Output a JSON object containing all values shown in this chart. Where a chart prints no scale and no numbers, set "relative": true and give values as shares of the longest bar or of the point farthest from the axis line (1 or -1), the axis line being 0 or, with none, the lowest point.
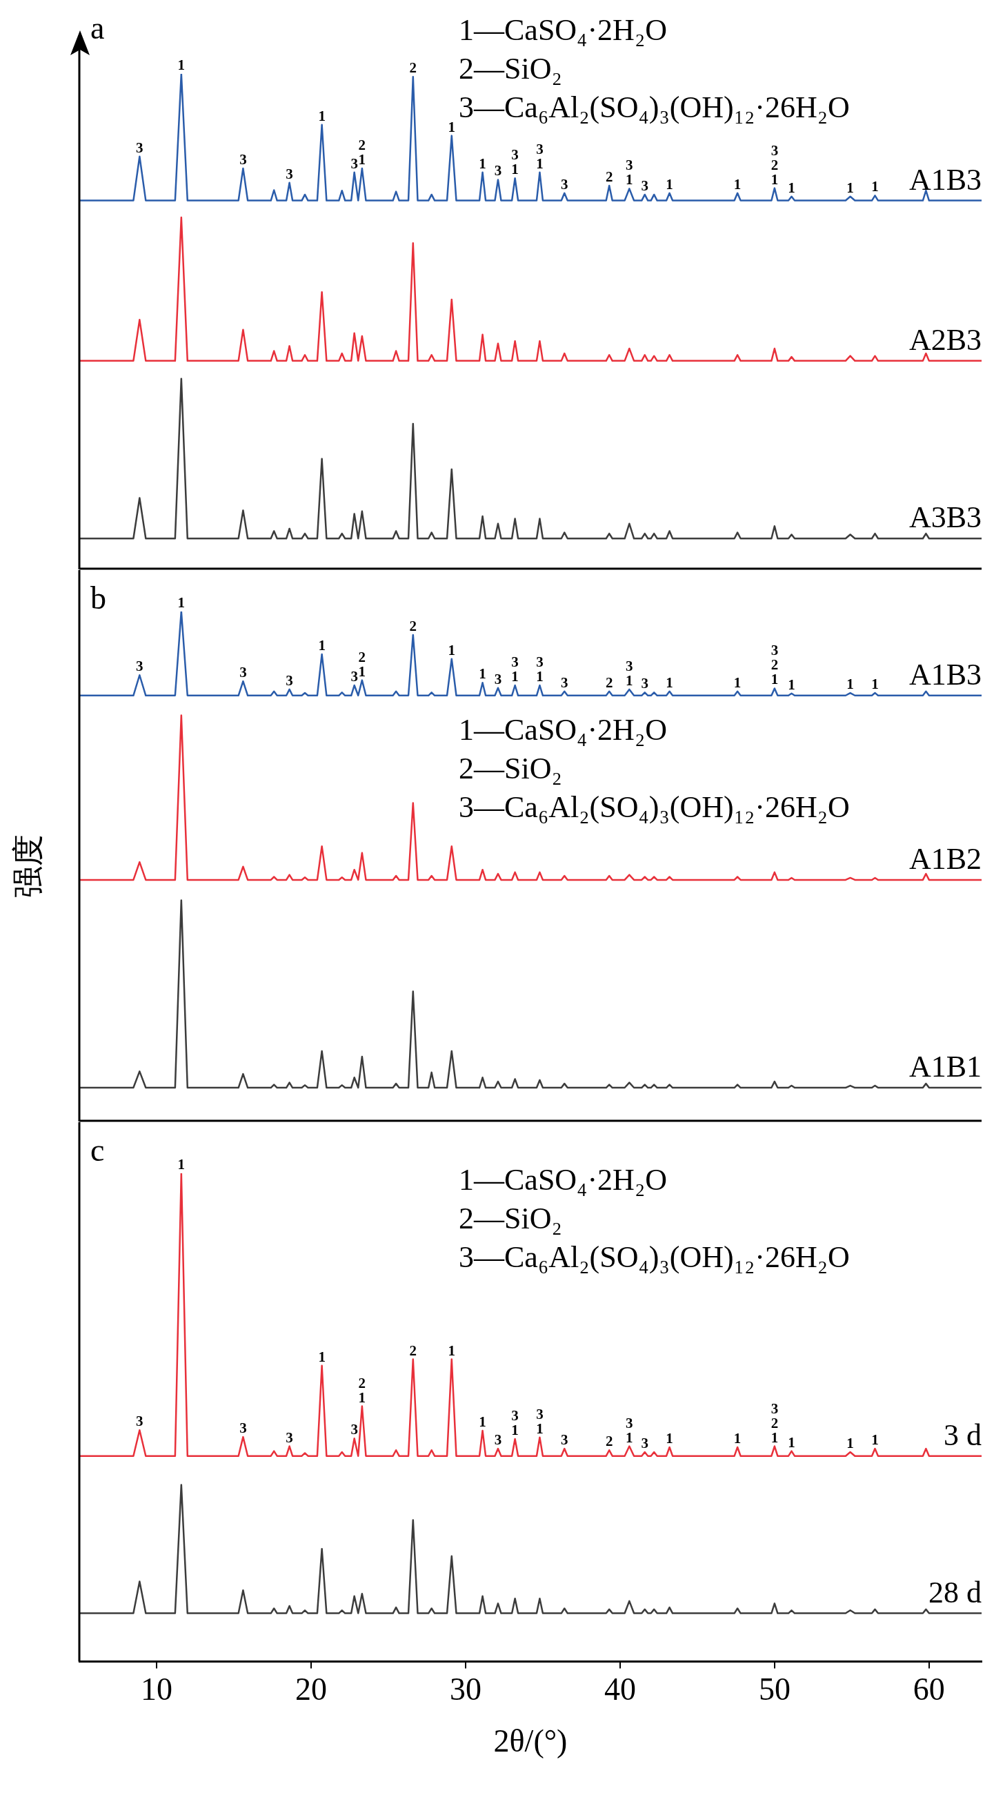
{
  "chart_data": [
    {
      "type": "line",
      "title": "a",
      "relative": true,
      "tick_labels": false,
      "xlim": [
        5,
        63.4
      ],
      "x": [
        5,
        8.5,
        8.9,
        9.3,
        11.2,
        11.6,
        12.0,
        15.3,
        15.6,
        15.9,
        17.4,
        17.6,
        17.8,
        18.4,
        18.6,
        18.8,
        19.4,
        19.6,
        19.8,
        20.4,
        20.7,
        21.0,
        21.8,
        22.0,
        22.2,
        22.6,
        22.8,
        23.05,
        23.3,
        23.55,
        25.3,
        25.5,
        25.7,
        26.3,
        26.6,
        26.9,
        27.6,
        27.8,
        28.0,
        28.8,
        29.1,
        29.4,
        30.9,
        31.1,
        31.3,
        31.9,
        32.1,
        32.3,
        33.0,
        33.2,
        33.4,
        34.6,
        34.8,
        35.0,
        36.2,
        36.4,
        36.6,
        39.1,
        39.3,
        39.5,
        40.3,
        40.6,
        40.9,
        41.4,
        41.6,
        41.8,
        42.0,
        42.2,
        42.4,
        43.0,
        43.2,
        43.4,
        47.4,
        47.6,
        47.8,
        49.8,
        50.0,
        50.2,
        50.9,
        51.1,
        51.3,
        54.6,
        54.9,
        55.2,
        56.3,
        56.5,
        56.7,
        59.6,
        59.8,
        60.0,
        63.4
      ],
      "series": [
        {
          "name": "A1B3",
          "color": "#2a5caa",
          "values": [
            0.744,
            0.744,
            0.833,
            0.744,
            0.744,
            1,
            0.744,
            0.744,
            0.809,
            0.744,
            0.744,
            0.765,
            0.744,
            0.744,
            0.78,
            0.744,
            0.744,
            0.756,
            0.744,
            0.744,
            0.897,
            0.744,
            0.744,
            0.764,
            0.744,
            0.744,
            0.801,
            0.744,
            0.809,
            0.744,
            0.744,
            0.762,
            0.744,
            0.744,
            0.994,
            0.744,
            0.744,
            0.756,
            0.744,
            0.744,
            0.875,
            0.744,
            0.744,
            0.801,
            0.744,
            0.744,
            0.786,
            0.744,
            0.744,
            0.789,
            0.744,
            0.744,
            0.801,
            0.744,
            0.744,
            0.759,
            0.744,
            0.744,
            0.774,
            0.744,
            0.744,
            0.768,
            0.744,
            0.744,
            0.756,
            0.744,
            0.744,
            0.756,
            0.744,
            0.744,
            0.759,
            0.744,
            0.744,
            0.759,
            0.744,
            0.744,
            0.769,
            0.744,
            0.744,
            0.752,
            0.744,
            0.744,
            0.752,
            0.744,
            0.744,
            0.754,
            0.744,
            0.744,
            0.764,
            0.744,
            0.744
          ]
        },
        {
          "name": "A2B3",
          "color": "#e8303a",
          "values": [
            0.42,
            0.42,
            0.503,
            0.42,
            0.42,
            0.71,
            0.42,
            0.42,
            0.483,
            0.42,
            0.42,
            0.44,
            0.42,
            0.42,
            0.45,
            0.42,
            0.42,
            0.432,
            0.42,
            0.42,
            0.559,
            0.42,
            0.42,
            0.435,
            0.42,
            0.42,
            0.476,
            0.42,
            0.47,
            0.42,
            0.42,
            0.44,
            0.42,
            0.42,
            0.658,
            0.42,
            0.42,
            0.432,
            0.42,
            0.42,
            0.544,
            0.42,
            0.42,
            0.473,
            0.42,
            0.42,
            0.455,
            0.42,
            0.42,
            0.46,
            0.42,
            0.42,
            0.46,
            0.42,
            0.42,
            0.435,
            0.42,
            0.42,
            0.432,
            0.42,
            0.42,
            0.445,
            0.42,
            0.42,
            0.432,
            0.42,
            0.42,
            0.43,
            0.42,
            0.42,
            0.432,
            0.42,
            0.42,
            0.432,
            0.42,
            0.42,
            0.445,
            0.42,
            0.42,
            0.428,
            0.42,
            0.42,
            0.43,
            0.42,
            0.42,
            0.43,
            0.42,
            0.42,
            0.435,
            0.42,
            0.42
          ]
        },
        {
          "name": "A3B3",
          "color": "#3c3c3c",
          "values": [
            0.061,
            0.061,
            0.143,
            0.061,
            0.061,
            0.384,
            0.061,
            0.061,
            0.118,
            0.061,
            0.061,
            0.076,
            0.061,
            0.061,
            0.081,
            0.061,
            0.061,
            0.071,
            0.061,
            0.061,
            0.222,
            0.061,
            0.061,
            0.071,
            0.061,
            0.061,
            0.111,
            0.061,
            0.116,
            0.061,
            0.061,
            0.076,
            0.061,
            0.061,
            0.293,
            0.061,
            0.061,
            0.073,
            0.061,
            0.061,
            0.201,
            0.061,
            0.061,
            0.106,
            0.061,
            0.061,
            0.091,
            0.061,
            0.061,
            0.101,
            0.061,
            0.061,
            0.101,
            0.061,
            0.061,
            0.073,
            0.061,
            0.061,
            0.071,
            0.061,
            0.061,
            0.091,
            0.061,
            0.061,
            0.071,
            0.061,
            0.061,
            0.071,
            0.061,
            0.061,
            0.076,
            0.061,
            0.061,
            0.073,
            0.061,
            0.061,
            0.086,
            0.061,
            0.061,
            0.069,
            0.061,
            0.061,
            0.069,
            0.061,
            0.061,
            0.071,
            0.061,
            0.061,
            0.071,
            0.061,
            0.061
          ]
        }
      ],
      "annotations": [
        "1—CaSO₄·2H₂O",
        "2—SiO₂",
        "3—Ca₆Al₂(SO₄)₃(OH)₁₂·26H₂O",
        {
          "text": "3",
          "x": 8.9,
          "y": 0.833
        },
        {
          "text": "1",
          "x": 11.6,
          "y": 1
        },
        {
          "text": "3",
          "x": 15.6,
          "y": 0.809
        },
        {
          "text": "3",
          "x": 18.6,
          "y": 0.78
        },
        {
          "text": "1",
          "x": 20.7,
          "y": 0.897
        },
        {
          "text": "3",
          "x": 22.8,
          "y": 0.801
        },
        {
          "text": "1",
          "x": 23.3,
          "y": 0.809
        },
        {
          "text": "2",
          "x": 23.3,
          "y": 0.809
        },
        {
          "text": "2",
          "x": 26.6,
          "y": 0.994
        },
        {
          "text": "1",
          "x": 29.1,
          "y": 0.875
        },
        {
          "text": "1",
          "x": 31.1,
          "y": 0.801
        },
        {
          "text": "3",
          "x": 32.1,
          "y": 0.786
        },
        {
          "text": "1",
          "x": 33.2,
          "y": 0.789
        },
        {
          "text": "3",
          "x": 33.2,
          "y": 0.789
        },
        {
          "text": "1",
          "x": 34.8,
          "y": 0.801
        },
        {
          "text": "3",
          "x": 34.8,
          "y": 0.801
        },
        {
          "text": "3",
          "x": 36.4,
          "y": 0.759
        },
        {
          "text": "2",
          "x": 39.3,
          "y": 0.774
        },
        {
          "text": "1",
          "x": 40.6,
          "y": 0.768
        },
        {
          "text": "3",
          "x": 40.6,
          "y": 0.768
        },
        {
          "text": "3",
          "x": 41.6,
          "y": 0.756
        },
        {
          "text": "1",
          "x": 43.2,
          "y": 0.759
        },
        {
          "text": "1",
          "x": 47.6,
          "y": 0.759
        },
        {
          "text": "1",
          "x": 50.0,
          "y": 0.769
        },
        {
          "text": "2",
          "x": 50.0,
          "y": 0.769
        },
        {
          "text": "3",
          "x": 50.0,
          "y": 0.769
        },
        {
          "text": "1",
          "x": 51.1,
          "y": 0.752
        },
        {
          "text": "1",
          "x": 54.9,
          "y": 0.752
        },
        {
          "text": "1",
          "x": 56.5,
          "y": 0.754
        }
      ]
    },
    {
      "type": "line",
      "title": "b",
      "ylabel": "强度",
      "relative": true,
      "tick_labels": false,
      "xlim": [
        5,
        63.4
      ],
      "x": [
        5,
        8.5,
        8.9,
        9.3,
        11.2,
        11.6,
        12.0,
        15.3,
        15.6,
        15.9,
        17.4,
        17.6,
        17.8,
        18.4,
        18.6,
        18.8,
        19.4,
        19.6,
        19.8,
        20.4,
        20.7,
        21.0,
        21.8,
        22.0,
        22.2,
        22.6,
        22.8,
        23.05,
        23.3,
        23.55,
        25.3,
        25.5,
        25.7,
        26.3,
        26.6,
        26.9,
        27.6,
        27.8,
        28.0,
        28.8,
        29.1,
        29.4,
        30.9,
        31.1,
        31.3,
        31.9,
        32.1,
        32.3,
        33.0,
        33.2,
        33.4,
        34.6,
        34.8,
        35.0,
        36.2,
        36.4,
        36.6,
        39.1,
        39.3,
        39.5,
        40.3,
        40.6,
        40.9,
        41.4,
        41.6,
        41.8,
        42.0,
        42.2,
        42.4,
        43.0,
        43.2,
        43.4,
        47.4,
        47.6,
        47.8,
        49.8,
        50.0,
        50.2,
        50.9,
        51.1,
        51.3,
        54.6,
        54.9,
        55.2,
        56.3,
        56.5,
        56.7,
        59.6,
        59.8,
        60.0,
        63.4
      ],
      "series": [
        {
          "name": "A1B3",
          "color": "#2a5caa",
          "values": [
            0.835,
            0.835,
            0.875,
            0.835,
            0.835,
            1,
            0.835,
            0.835,
            0.863,
            0.835,
            0.835,
            0.843,
            0.835,
            0.835,
            0.847,
            0.835,
            0.835,
            0.84,
            0.835,
            0.835,
            0.916,
            0.835,
            0.835,
            0.841,
            0.835,
            0.835,
            0.855,
            0.835,
            0.865,
            0.835,
            0.835,
            0.843,
            0.835,
            0.835,
            0.954,
            0.835,
            0.835,
            0.841,
            0.835,
            0.835,
            0.907,
            0.835,
            0.835,
            0.86,
            0.835,
            0.835,
            0.85,
            0.835,
            0.835,
            0.855,
            0.835,
            0.835,
            0.855,
            0.835,
            0.835,
            0.843,
            0.835,
            0.835,
            0.843,
            0.835,
            0.835,
            0.847,
            0.835,
            0.835,
            0.841,
            0.835,
            0.835,
            0.841,
            0.835,
            0.835,
            0.843,
            0.835,
            0.835,
            0.843,
            0.835,
            0.835,
            0.849,
            0.835,
            0.835,
            0.839,
            0.835,
            0.835,
            0.84,
            0.835,
            0.835,
            0.84,
            0.835,
            0.835,
            0.843,
            0.835,
            0.835
          ]
        },
        {
          "name": "A1B2",
          "color": "#e8303a",
          "values": [
            0.473,
            0.473,
            0.508,
            0.473,
            0.473,
            0.796,
            0.473,
            0.473,
            0.499,
            0.473,
            0.473,
            0.479,
            0.473,
            0.473,
            0.483,
            0.473,
            0.473,
            0.478,
            0.473,
            0.473,
            0.539,
            0.473,
            0.473,
            0.478,
            0.473,
            0.473,
            0.493,
            0.473,
            0.526,
            0.473,
            0.473,
            0.481,
            0.473,
            0.473,
            0.624,
            0.473,
            0.473,
            0.481,
            0.473,
            0.473,
            0.539,
            0.473,
            0.473,
            0.493,
            0.473,
            0.473,
            0.485,
            0.473,
            0.473,
            0.488,
            0.473,
            0.473,
            0.488,
            0.473,
            0.473,
            0.481,
            0.473,
            0.473,
            0.481,
            0.473,
            0.473,
            0.483,
            0.473,
            0.473,
            0.479,
            0.473,
            0.473,
            0.479,
            0.473,
            0.473,
            0.479,
            0.473,
            0.473,
            0.479,
            0.473,
            0.473,
            0.488,
            0.473,
            0.473,
            0.477,
            0.473,
            0.473,
            0.477,
            0.473,
            0.473,
            0.477,
            0.473,
            0.473,
            0.485,
            0.473,
            0.473
          ]
        },
        {
          "name": "A1B1",
          "color": "#3c3c3c",
          "values": [
            0.065,
            0.065,
            0.097,
            0.065,
            0.065,
            0.433,
            0.065,
            0.065,
            0.092,
            0.065,
            0.065,
            0.071,
            0.065,
            0.065,
            0.075,
            0.065,
            0.065,
            0.07,
            0.065,
            0.065,
            0.137,
            0.065,
            0.065,
            0.07,
            0.065,
            0.065,
            0.085,
            0.065,
            0.126,
            0.065,
            0.065,
            0.073,
            0.065,
            0.065,
            0.254,
            0.065,
            0.065,
            0.095,
            0.065,
            0.065,
            0.137,
            0.065,
            0.065,
            0.085,
            0.065,
            0.065,
            0.077,
            0.065,
            0.065,
            0.082,
            0.065,
            0.065,
            0.08,
            0.065,
            0.065,
            0.073,
            0.065,
            0.065,
            0.071,
            0.065,
            0.065,
            0.075,
            0.065,
            0.065,
            0.071,
            0.065,
            0.065,
            0.071,
            0.065,
            0.065,
            0.071,
            0.065,
            0.065,
            0.071,
            0.065,
            0.065,
            0.077,
            0.065,
            0.065,
            0.069,
            0.065,
            0.065,
            0.069,
            0.065,
            0.065,
            0.069,
            0.065,
            0.065,
            0.073,
            0.065,
            0.065
          ]
        }
      ],
      "annotations": [
        "1—CaSO₄·2H₂O",
        "2—SiO₂",
        "3—Ca₆Al₂(SO₄)₃(OH)₁₂·26H₂O",
        {
          "text": "3",
          "x": 8.9,
          "y": 0.875
        },
        {
          "text": "1",
          "x": 11.6,
          "y": 1
        },
        {
          "text": "3",
          "x": 15.6,
          "y": 0.863
        },
        {
          "text": "3",
          "x": 18.6,
          "y": 0.847
        },
        {
          "text": "1",
          "x": 20.7,
          "y": 0.916
        },
        {
          "text": "3",
          "x": 22.8,
          "y": 0.855
        },
        {
          "text": "1",
          "x": 23.3,
          "y": 0.865
        },
        {
          "text": "2",
          "x": 23.3,
          "y": 0.865
        },
        {
          "text": "2",
          "x": 26.6,
          "y": 0.954
        },
        {
          "text": "1",
          "x": 29.1,
          "y": 0.907
        },
        {
          "text": "1",
          "x": 31.1,
          "y": 0.86
        },
        {
          "text": "3",
          "x": 32.1,
          "y": 0.85
        },
        {
          "text": "1",
          "x": 33.2,
          "y": 0.855
        },
        {
          "text": "3",
          "x": 33.2,
          "y": 0.855
        },
        {
          "text": "1",
          "x": 34.8,
          "y": 0.855
        },
        {
          "text": "3",
          "x": 34.8,
          "y": 0.855
        },
        {
          "text": "3",
          "x": 36.4,
          "y": 0.843
        },
        {
          "text": "2",
          "x": 39.3,
          "y": 0.843
        },
        {
          "text": "1",
          "x": 40.6,
          "y": 0.847
        },
        {
          "text": "3",
          "x": 40.6,
          "y": 0.847
        },
        {
          "text": "3",
          "x": 41.6,
          "y": 0.841
        },
        {
          "text": "1",
          "x": 43.2,
          "y": 0.843
        },
        {
          "text": "1",
          "x": 47.6,
          "y": 0.843
        },
        {
          "text": "1",
          "x": 50.0,
          "y": 0.849
        },
        {
          "text": "2",
          "x": 50.0,
          "y": 0.849
        },
        {
          "text": "3",
          "x": 50.0,
          "y": 0.849
        },
        {
          "text": "1",
          "x": 51.1,
          "y": 0.839
        },
        {
          "text": "1",
          "x": 54.9,
          "y": 0.84
        },
        {
          "text": "1",
          "x": 56.5,
          "y": 0.84
        }
      ]
    },
    {
      "type": "line",
      "title": "c",
      "xlabel": "2θ/(°)",
      "relative": true,
      "xlim": [
        5,
        63.4
      ],
      "xticks": [
        10,
        20,
        30,
        40,
        50,
        60
      ],
      "tick_labels": "x",
      "x": [
        5,
        8.5,
        8.9,
        9.3,
        11.2,
        11.6,
        12.0,
        15.3,
        15.6,
        15.9,
        17.4,
        17.6,
        17.8,
        18.4,
        18.6,
        18.8,
        19.4,
        19.6,
        19.8,
        20.4,
        20.7,
        21.0,
        21.8,
        22.0,
        22.2,
        22.6,
        22.8,
        23.05,
        23.3,
        23.55,
        25.3,
        25.5,
        25.7,
        26.3,
        26.6,
        26.9,
        27.6,
        27.8,
        28.0,
        28.8,
        29.1,
        29.4,
        30.9,
        31.1,
        31.3,
        31.9,
        32.1,
        32.3,
        33.0,
        33.2,
        33.4,
        34.6,
        34.8,
        35.0,
        36.2,
        36.4,
        36.6,
        39.1,
        39.3,
        39.5,
        40.3,
        40.6,
        40.9,
        41.4,
        41.6,
        41.8,
        42.0,
        42.2,
        42.4,
        43.0,
        43.2,
        43.4,
        47.4,
        47.6,
        47.8,
        49.8,
        50.0,
        50.2,
        50.9,
        51.1,
        51.3,
        54.6,
        54.9,
        55.2,
        56.3,
        56.5,
        56.7,
        59.6,
        59.8,
        60.0,
        63.4
      ],
      "series": [
        {
          "name": "3 d",
          "color": "#e8303a",
          "values": [
            0.421,
            0.421,
            0.474,
            0.421,
            0.421,
            1,
            0.421,
            0.421,
            0.46,
            0.421,
            0.421,
            0.431,
            0.421,
            0.421,
            0.441,
            0.421,
            0.421,
            0.427,
            0.421,
            0.421,
            0.606,
            0.421,
            0.421,
            0.429,
            0.421,
            0.421,
            0.457,
            0.421,
            0.523,
            0.421,
            0.421,
            0.433,
            0.421,
            0.421,
            0.619,
            0.421,
            0.421,
            0.433,
            0.421,
            0.421,
            0.619,
            0.421,
            0.421,
            0.473,
            0.421,
            0.421,
            0.436,
            0.421,
            0.421,
            0.456,
            0.421,
            0.421,
            0.459,
            0.421,
            0.421,
            0.436,
            0.421,
            0.421,
            0.433,
            0.421,
            0.421,
            0.441,
            0.421,
            0.421,
            0.429,
            0.421,
            0.421,
            0.429,
            0.421,
            0.421,
            0.439,
            0.421,
            0.421,
            0.439,
            0.421,
            0.421,
            0.441,
            0.421,
            0.421,
            0.431,
            0.421,
            0.421,
            0.429,
            0.421,
            0.421,
            0.436,
            0.421,
            0.421,
            0.436,
            0.421,
            0.421
          ]
        },
        {
          "name": "28 d",
          "color": "#3c3c3c",
          "values": [
            0.099,
            0.099,
            0.164,
            0.099,
            0.099,
            0.362,
            0.099,
            0.099,
            0.146,
            0.099,
            0.099,
            0.109,
            0.099,
            0.099,
            0.114,
            0.099,
            0.099,
            0.105,
            0.099,
            0.099,
            0.231,
            0.099,
            0.099,
            0.105,
            0.099,
            0.099,
            0.134,
            0.099,
            0.139,
            0.099,
            0.099,
            0.111,
            0.099,
            0.099,
            0.29,
            0.099,
            0.099,
            0.109,
            0.099,
            0.099,
            0.216,
            0.099,
            0.099,
            0.134,
            0.099,
            0.099,
            0.119,
            0.099,
            0.099,
            0.129,
            0.099,
            0.099,
            0.129,
            0.099,
            0.099,
            0.109,
            0.099,
            0.099,
            0.107,
            0.099,
            0.099,
            0.124,
            0.099,
            0.099,
            0.107,
            0.099,
            0.099,
            0.107,
            0.099,
            0.099,
            0.111,
            0.099,
            0.099,
            0.109,
            0.099,
            0.099,
            0.119,
            0.099,
            0.099,
            0.105,
            0.099,
            0.099,
            0.105,
            0.099,
            0.099,
            0.107,
            0.099,
            0.099,
            0.107,
            0.099,
            0.099
          ]
        }
      ],
      "annotations": [
        "1—CaSO₄·2H₂O",
        "2—SiO₂",
        "3—Ca₆Al₂(SO₄)₃(OH)₁₂·26H₂O",
        {
          "text": "3",
          "x": 8.9,
          "y": 0.474
        },
        {
          "text": "1",
          "x": 11.6,
          "y": 1
        },
        {
          "text": "3",
          "x": 15.6,
          "y": 0.46
        },
        {
          "text": "3",
          "x": 18.6,
          "y": 0.441
        },
        {
          "text": "1",
          "x": 20.7,
          "y": 0.606
        },
        {
          "text": "3",
          "x": 22.8,
          "y": 0.457
        },
        {
          "text": "1",
          "x": 23.3,
          "y": 0.523
        },
        {
          "text": "2",
          "x": 23.3,
          "y": 0.523
        },
        {
          "text": "2",
          "x": 26.6,
          "y": 0.619
        },
        {
          "text": "1",
          "x": 29.1,
          "y": 0.619
        },
        {
          "text": "1",
          "x": 31.1,
          "y": 0.473
        },
        {
          "text": "3",
          "x": 32.1,
          "y": 0.436
        },
        {
          "text": "1",
          "x": 33.2,
          "y": 0.456
        },
        {
          "text": "3",
          "x": 33.2,
          "y": 0.456
        },
        {
          "text": "1",
          "x": 34.8,
          "y": 0.459
        },
        {
          "text": "3",
          "x": 34.8,
          "y": 0.459
        },
        {
          "text": "3",
          "x": 36.4,
          "y": 0.436
        },
        {
          "text": "2",
          "x": 39.3,
          "y": 0.433
        },
        {
          "text": "1",
          "x": 40.6,
          "y": 0.441
        },
        {
          "text": "3",
          "x": 40.6,
          "y": 0.441
        },
        {
          "text": "3",
          "x": 41.6,
          "y": 0.429
        },
        {
          "text": "1",
          "x": 43.2,
          "y": 0.439
        },
        {
          "text": "1",
          "x": 47.6,
          "y": 0.439
        },
        {
          "text": "1",
          "x": 50.0,
          "y": 0.441
        },
        {
          "text": "2",
          "x": 50.0,
          "y": 0.441
        },
        {
          "text": "3",
          "x": 50.0,
          "y": 0.441
        },
        {
          "text": "1",
          "x": 51.1,
          "y": 0.431
        },
        {
          "text": "1",
          "x": 54.9,
          "y": 0.429
        },
        {
          "text": "1",
          "x": 56.5,
          "y": 0.436
        }
      ]
    }
  ]
}
